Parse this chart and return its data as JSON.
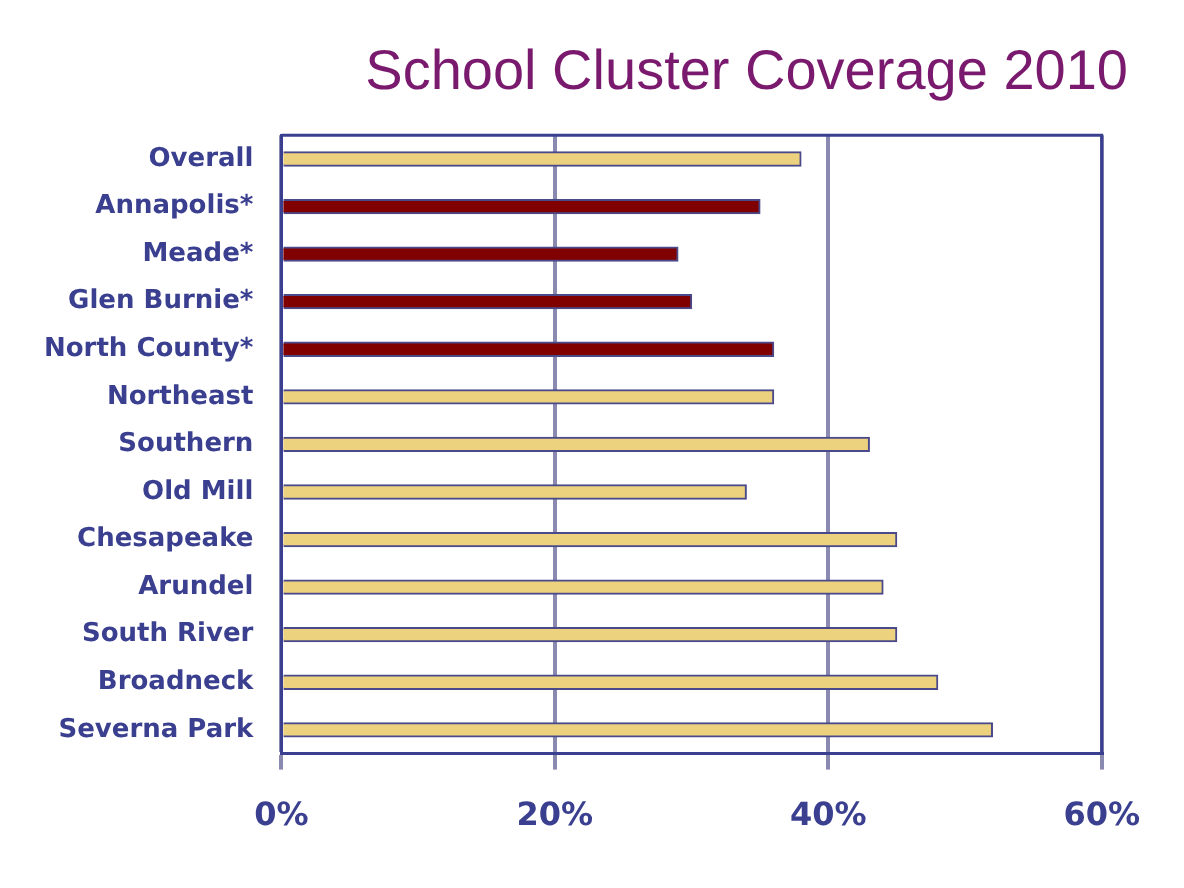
{
  "chart_data": {
    "type": "bar",
    "orientation": "horizontal",
    "title": "School Cluster Coverage 2010",
    "categories": [
      "Overall",
      "Annapolis*",
      "Meade*",
      "Glen Burnie*",
      "North County*",
      "Northeast",
      "Southern",
      "Old Mill",
      "Chesapeake",
      "Arundel",
      "South River",
      "Broadneck",
      "Severna Park"
    ],
    "values": [
      38,
      35,
      29,
      30,
      36,
      36,
      43,
      34,
      45,
      44,
      45,
      48,
      52
    ],
    "colors": [
      "#ecd27e",
      "#800000",
      "#800000",
      "#800000",
      "#800000",
      "#ecd27e",
      "#ecd27e",
      "#ecd27e",
      "#ecd27e",
      "#ecd27e",
      "#ecd27e",
      "#ecd27e",
      "#ecd27e"
    ],
    "xlim": [
      0,
      60
    ],
    "xticks": [
      {
        "value": 0,
        "label": "0%"
      },
      {
        "value": 20,
        "label": "20%"
      },
      {
        "value": 40,
        "label": "40%"
      },
      {
        "value": 60,
        "label": "60%"
      }
    ],
    "grid": "x",
    "legend": false
  }
}
